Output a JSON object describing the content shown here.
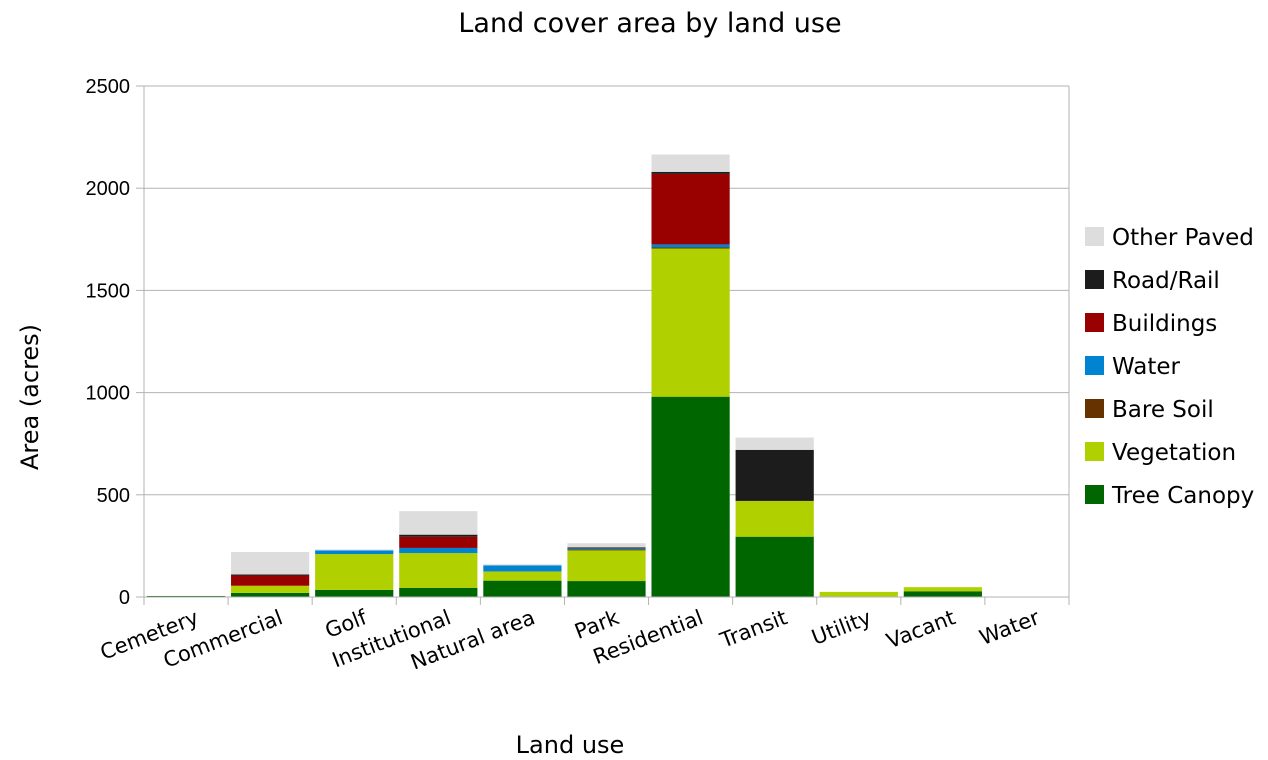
{
  "chart_data": {
    "type": "bar",
    "stacked": true,
    "title": "Land cover area by land use",
    "xlabel": "Land use",
    "ylabel": "Area (acres)",
    "ylim": [
      0,
      2500
    ],
    "yticks": [
      0,
      500,
      1000,
      1500,
      2000,
      2500
    ],
    "grid": true,
    "legend": "right",
    "categories": [
      "Cemetery",
      "Commercial",
      "Golf",
      "Institutional",
      "Natural area",
      "Park",
      "Residential",
      "Transit",
      "Utility",
      "Vacant",
      "Water"
    ],
    "series": [
      {
        "name": "Tree Canopy",
        "color": "#006600",
        "values": [
          5,
          20,
          35,
          45,
          80,
          78,
          980,
          295,
          3,
          28,
          0
        ]
      },
      {
        "name": "Vegetation",
        "color": "#b0d000",
        "values": [
          0,
          35,
          175,
          170,
          45,
          150,
          725,
          175,
          22,
          20,
          0
        ]
      },
      {
        "name": "Bare Soil",
        "color": "#663300",
        "values": [
          0,
          0,
          0,
          0,
          0,
          5,
          5,
          0,
          0,
          0,
          0
        ]
      },
      {
        "name": "Water",
        "color": "#0084d1",
        "values": [
          0,
          0,
          18,
          25,
          30,
          5,
          15,
          0,
          0,
          0,
          2
        ]
      },
      {
        "name": "Buildings",
        "color": "#990000",
        "values": [
          0,
          50,
          0,
          55,
          0,
          0,
          345,
          0,
          0,
          0,
          0
        ]
      },
      {
        "name": "Road/Rail",
        "color": "#1c1c1c",
        "values": [
          0,
          5,
          0,
          10,
          0,
          5,
          10,
          250,
          0,
          0,
          0
        ]
      },
      {
        "name": "Other Paved",
        "color": "#dddddd",
        "values": [
          0,
          110,
          5,
          115,
          5,
          20,
          85,
          60,
          0,
          0,
          0
        ]
      }
    ]
  }
}
